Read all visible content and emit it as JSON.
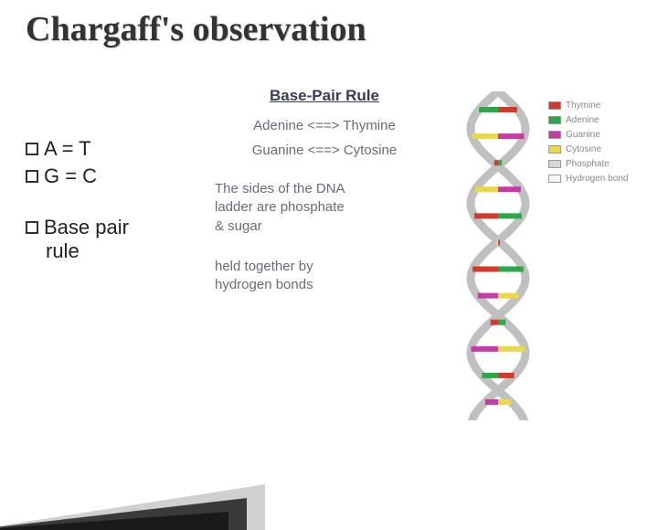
{
  "title": "Chargaff's observation",
  "bullets": {
    "rule1": "A = T",
    "rule2": "G = C",
    "bp_label": "Base pair",
    "bp_sub": "rule"
  },
  "diagram": {
    "heading": "Base-Pair Rule",
    "pair1": "Adenine <==> Thymine",
    "pair2": "Guanine <==> Cytosine",
    "note1a": "The sides of the DNA",
    "note1b": "ladder are phosphate",
    "note1c": "& sugar",
    "note2a": "held together by",
    "note2b": "hydrogen bonds"
  },
  "legend": {
    "items": [
      {
        "label": "Thymine",
        "color": "#d43a2a"
      },
      {
        "label": "Adenine",
        "color": "#2aa84a"
      },
      {
        "label": "Guanine",
        "color": "#c73aa8"
      },
      {
        "label": "Cytosine",
        "color": "#e8d84a"
      },
      {
        "label": "Phosphate",
        "color": "#d8d8d8"
      },
      {
        "label": "Hydrogen bond",
        "color": "#f5f5f5"
      }
    ]
  },
  "dna": {
    "backbone_color": "#c0c0c0",
    "rungs": [
      {
        "left": "#d43a2a",
        "right": "#2aa84a"
      },
      {
        "left": "#c73aa8",
        "right": "#e8d84a"
      },
      {
        "left": "#2aa84a",
        "right": "#d43a2a"
      },
      {
        "left": "#e8d84a",
        "right": "#c73aa8"
      },
      {
        "left": "#d43a2a",
        "right": "#2aa84a"
      },
      {
        "left": "#c73aa8",
        "right": "#e8d84a"
      },
      {
        "left": "#2aa84a",
        "right": "#d43a2a"
      },
      {
        "left": "#e8d84a",
        "right": "#c73aa8"
      },
      {
        "left": "#d43a2a",
        "right": "#2aa84a"
      },
      {
        "left": "#c73aa8",
        "right": "#e8d84a"
      },
      {
        "left": "#2aa84a",
        "right": "#d43a2a"
      },
      {
        "left": "#e8d84a",
        "right": "#c73aa8"
      }
    ]
  },
  "decor": {
    "colors": [
      "#d0d0d0",
      "#3a3a3a",
      "#1a1a1a"
    ]
  }
}
